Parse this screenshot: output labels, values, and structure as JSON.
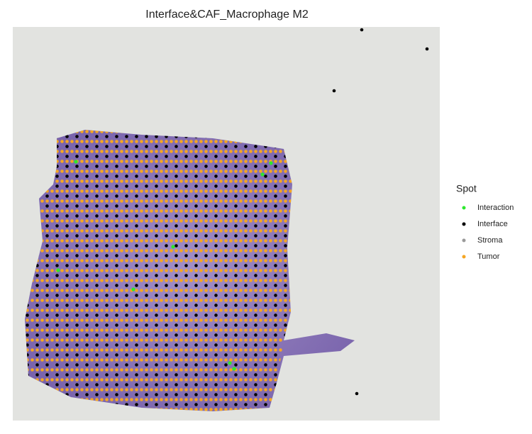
{
  "chart_data": {
    "type": "spatial",
    "title": "Interface&CAF_Macrophage M2",
    "legend_title": "Spot",
    "series": [
      {
        "name": "Interaction",
        "color": "#2ee82e"
      },
      {
        "name": "Interface",
        "color": "#000000"
      },
      {
        "name": "Stroma",
        "color": "#9a9a9a"
      },
      {
        "name": "Tumor",
        "color": "#f5a623"
      }
    ]
  }
}
